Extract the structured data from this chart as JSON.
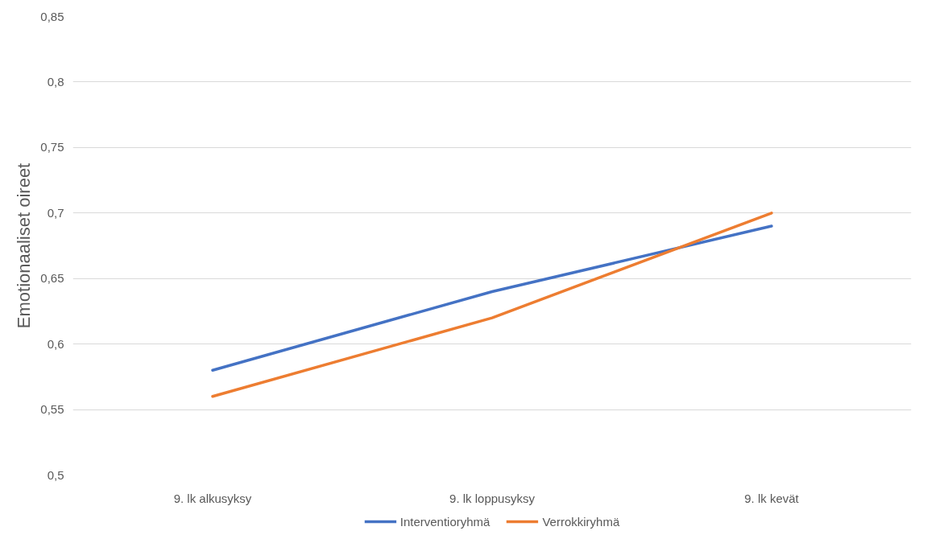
{
  "chart_data": {
    "type": "line",
    "ylabel": "Emotionaaliset oireet",
    "categories": [
      "9. lk alkusyksy",
      "9. lk loppusyksy",
      "9. lk kevät"
    ],
    "series": [
      {
        "name": "Interventioryhmä",
        "color": "#4472c4",
        "values": [
          0.58,
          0.64,
          0.69
        ]
      },
      {
        "name": "Verrokkiryhmä",
        "color": "#ed7d31",
        "values": [
          0.56,
          0.62,
          0.7
        ]
      }
    ],
    "ylim": [
      0.5,
      0.85
    ],
    "yticks": [
      {
        "value": 0.5,
        "label": "0,5"
      },
      {
        "value": 0.55,
        "label": "0,55"
      },
      {
        "value": 0.6,
        "label": "0,6"
      },
      {
        "value": 0.65,
        "label": "0,65"
      },
      {
        "value": 0.7,
        "label": "0,7"
      },
      {
        "value": 0.75,
        "label": "0,75"
      },
      {
        "value": 0.8,
        "label": "0,8"
      },
      {
        "value": 0.85,
        "label": "0,85"
      }
    ],
    "grid": "y",
    "legend": "bottom",
    "marker": "none",
    "line_style": "solid"
  }
}
